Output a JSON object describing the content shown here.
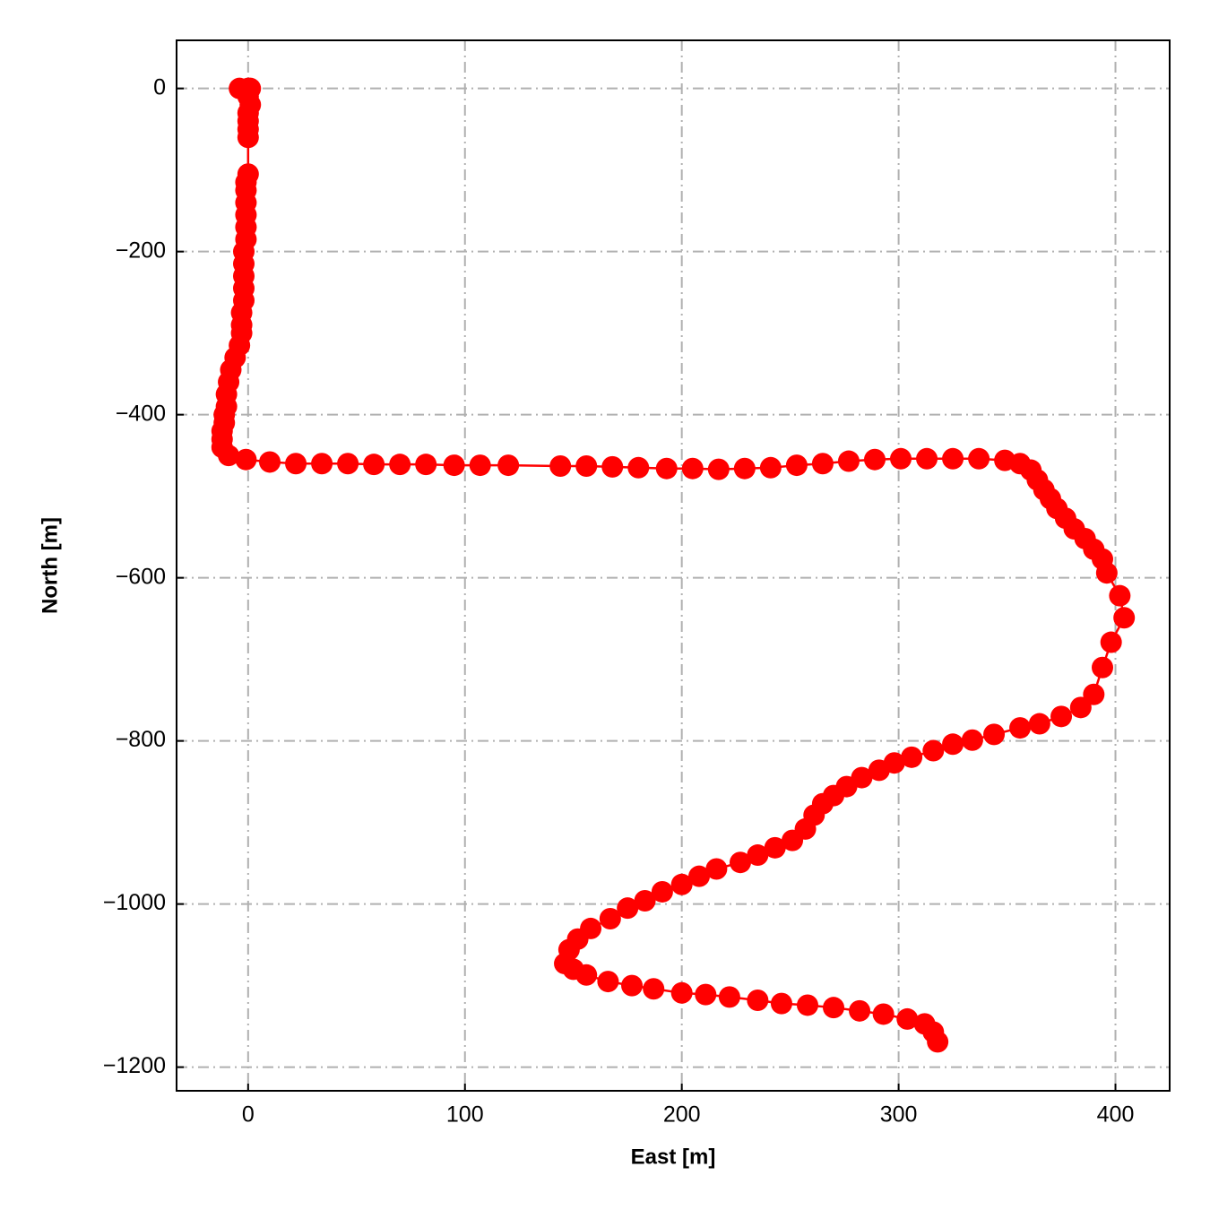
{
  "chart_data": {
    "type": "line",
    "xlabel": "East [m]",
    "ylabel": "North [m]",
    "color": "#ff0000",
    "grid": true,
    "xlim": [
      -33,
      425
    ],
    "ylim": [
      -1229,
      59
    ],
    "xticks": [
      0,
      100,
      200,
      300,
      400
    ],
    "yticks": [
      0,
      -200,
      -400,
      -600,
      -800,
      -1000,
      -1200
    ],
    "x": [
      -4,
      0,
      1,
      0,
      1,
      0,
      0,
      0,
      0,
      0,
      -1,
      -1,
      -1,
      -1,
      -1,
      -1,
      -2,
      -2,
      -2,
      -2,
      -2,
      -3,
      -3,
      -3,
      -4,
      -6,
      -8,
      -9,
      -10,
      -10,
      -11,
      -11,
      -12,
      -12,
      -12,
      -9,
      -1,
      10,
      22,
      34,
      46,
      58,
      70,
      82,
      95,
      107,
      120,
      144,
      156,
      168,
      180,
      193,
      205,
      217,
      229,
      241,
      253,
      265,
      277,
      289,
      301,
      313,
      325,
      337,
      349,
      356,
      361,
      364,
      367,
      370,
      373,
      377,
      381,
      386,
      390,
      394,
      396,
      402,
      404,
      398,
      394,
      390,
      384,
      375,
      365,
      356,
      344,
      334,
      325,
      316,
      306,
      298,
      291,
      283,
      276,
      270,
      265,
      261,
      257,
      251,
      243,
      235,
      227,
      216,
      208,
      200,
      191,
      183,
      175,
      167,
      158,
      152,
      148,
      146,
      150,
      156,
      166,
      177,
      187,
      200,
      211,
      222,
      235,
      246,
      258,
      270,
      282,
      293,
      304,
      312,
      316,
      318
    ],
    "values": [
      0,
      0,
      0,
      -10,
      -20,
      -30,
      -40,
      -50,
      -60,
      -105,
      -115,
      -125,
      -140,
      -155,
      -170,
      -185,
      -200,
      -215,
      -230,
      -245,
      -260,
      -275,
      -290,
      -300,
      -315,
      -330,
      -345,
      -360,
      -375,
      -390,
      -400,
      -410,
      -420,
      -430,
      -440,
      -450,
      -455,
      -458,
      -460,
      -460,
      -460,
      -461,
      -461,
      -461,
      -462,
      -462,
      -462,
      -463,
      -463,
      -464,
      -465,
      -466,
      -466,
      -467,
      -466,
      -465,
      -462,
      -460,
      -457,
      -455,
      -454,
      -454,
      -454,
      -454,
      -456,
      -460,
      -468,
      -480,
      -492,
      -503,
      -515,
      -527,
      -540,
      -552,
      -565,
      -577,
      -594,
      -622,
      -649,
      -679,
      -710,
      -743,
      -759,
      -770,
      -779,
      -784,
      -792,
      -799,
      -804,
      -812,
      -820,
      -827,
      -836,
      -845,
      -856,
      -867,
      -877,
      -891,
      -908,
      -922,
      -931,
      -940,
      -949,
      -957,
      -966,
      -976,
      -985,
      -996,
      -1005,
      -1018,
      -1030,
      -1043,
      -1056,
      -1073,
      -1080,
      -1087,
      -1095,
      -1100,
      -1104,
      -1109,
      -1111,
      -1114,
      -1118,
      -1122,
      -1124,
      -1127,
      -1131,
      -1135,
      -1141,
      -1147,
      -1157,
      -1169
    ]
  }
}
